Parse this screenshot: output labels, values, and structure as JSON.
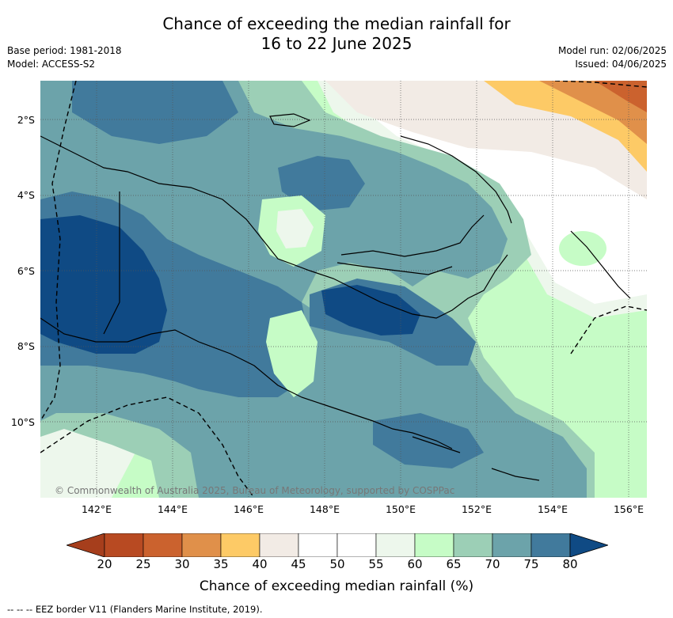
{
  "title": {
    "line1": "Chance of exceeding the median rainfall for",
    "line2": "16 to 22 June 2025"
  },
  "meta_left": {
    "base_period": "Base period: 1981-2018",
    "model": "Model: ACCESS-S2"
  },
  "meta_right": {
    "model_run": "Model run: 02/06/2025",
    "issued": "Issued: 04/06/2025"
  },
  "map": {
    "lat_labels": [
      "2°S",
      "4°S",
      "6°S",
      "8°S",
      "10°S"
    ],
    "lon_labels": [
      "142°E",
      "144°E",
      "146°E",
      "148°E",
      "150°E",
      "152°E",
      "154°E",
      "156°E"
    ],
    "copyright": "© Commonwealth of Australia 2025, Bureau of Meteorology, supported by COSPPac"
  },
  "colorbar": {
    "ticks": [
      "20",
      "25",
      "30",
      "35",
      "40",
      "45",
      "50",
      "55",
      "60",
      "65",
      "70",
      "75",
      "80"
    ],
    "colors": [
      "#a63e1c",
      "#b84a22",
      "#cb622e",
      "#e0904a",
      "#fdca66",
      "#f2ebe5",
      "#ffffff",
      "#ffffff",
      "#edf7ec",
      "#c6fcc6",
      "#9ccfb6",
      "#6ca3aa",
      "#417a9c",
      "#0f4a84"
    ],
    "title": "Chance of exceeding median rainfall (%)"
  },
  "footnote": "--  --  -- EEZ border V11 (Flanders Marine Institute, 2019)."
}
